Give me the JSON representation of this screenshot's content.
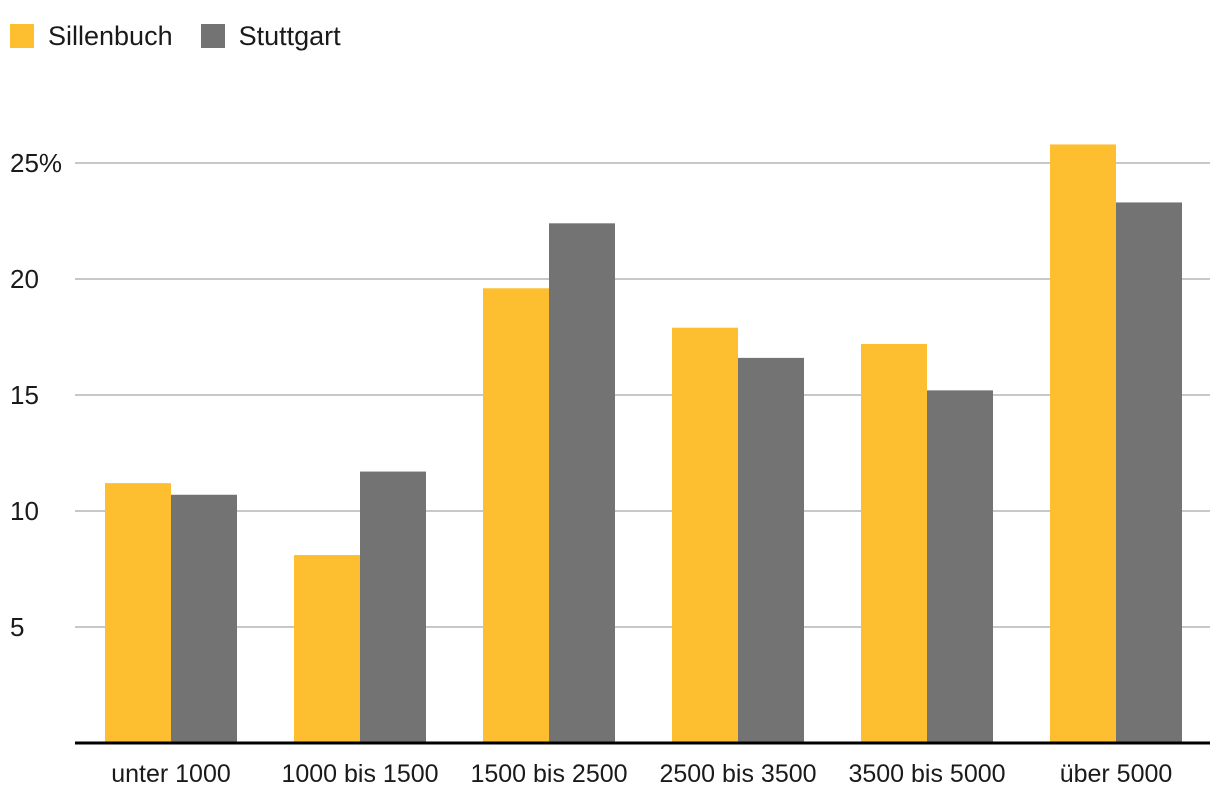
{
  "chart_data": {
    "type": "bar",
    "title": "",
    "xlabel": "",
    "ylabel": "",
    "categories": [
      "unter 1000",
      "1000 bis 1500",
      "1500 bis 2500",
      "2500 bis 3500",
      "3500 bis 5000",
      "über 5000"
    ],
    "series": [
      {
        "name": "Sillenbuch",
        "color": "#fdbe2f",
        "values": [
          11.2,
          8.1,
          19.6,
          17.9,
          17.2,
          25.8
        ]
      },
      {
        "name": "Stuttgart",
        "color": "#737373",
        "values": [
          10.7,
          11.7,
          22.4,
          16.6,
          15.2,
          23.3
        ]
      }
    ],
    "ylim": [
      0,
      25.8
    ],
    "yticks": [
      5,
      10,
      15,
      20,
      25
    ],
    "ytick_labels": [
      "5",
      "10",
      "15",
      "20",
      "25%"
    ],
    "grid": true,
    "legend": "top-left"
  }
}
